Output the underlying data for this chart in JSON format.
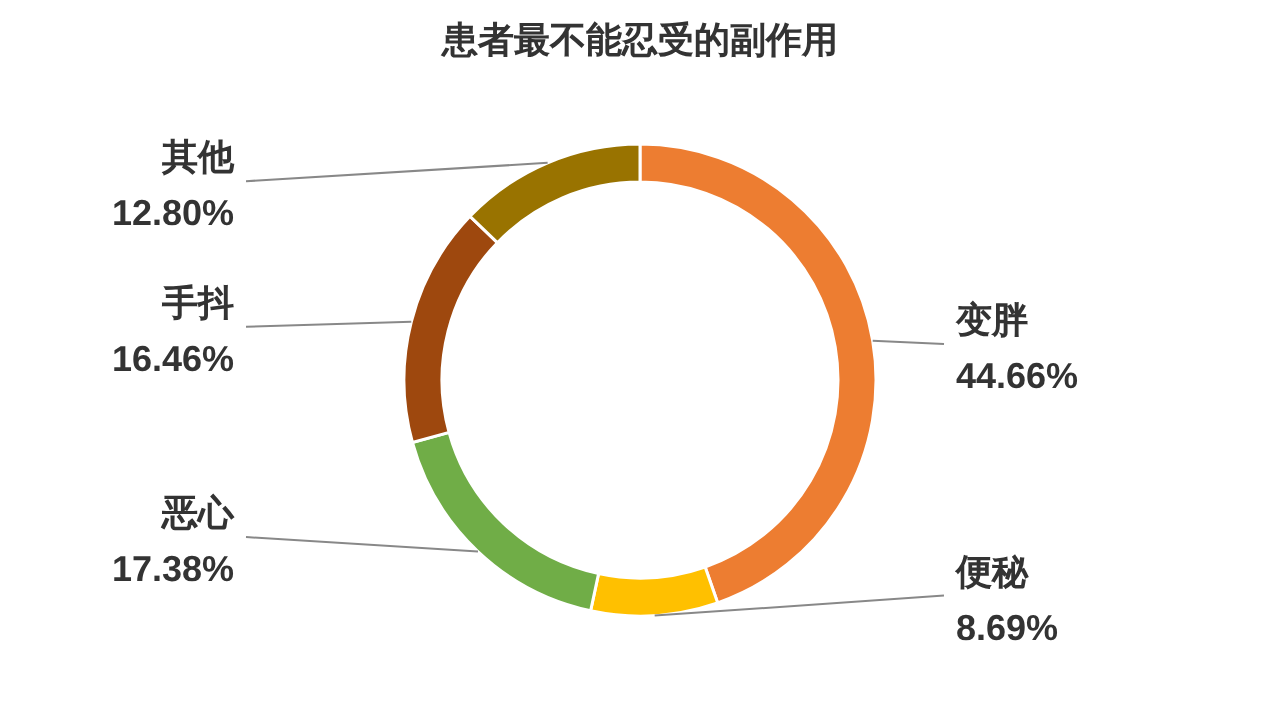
{
  "chart_data": {
    "type": "donut",
    "title": "患者最不能忍受的副作用",
    "categories": [
      "变胖",
      "便秘",
      "恶心",
      "手抖",
      "其他"
    ],
    "values": [
      44.66,
      8.69,
      17.38,
      16.46,
      12.8
    ],
    "value_labels": [
      "44.66%",
      "8.69%",
      "17.38%",
      "16.46%",
      "12.80%"
    ],
    "colors": [
      "#ed7d31",
      "#ffc000",
      "#70ad47",
      "#9e480e",
      "#997300"
    ]
  }
}
